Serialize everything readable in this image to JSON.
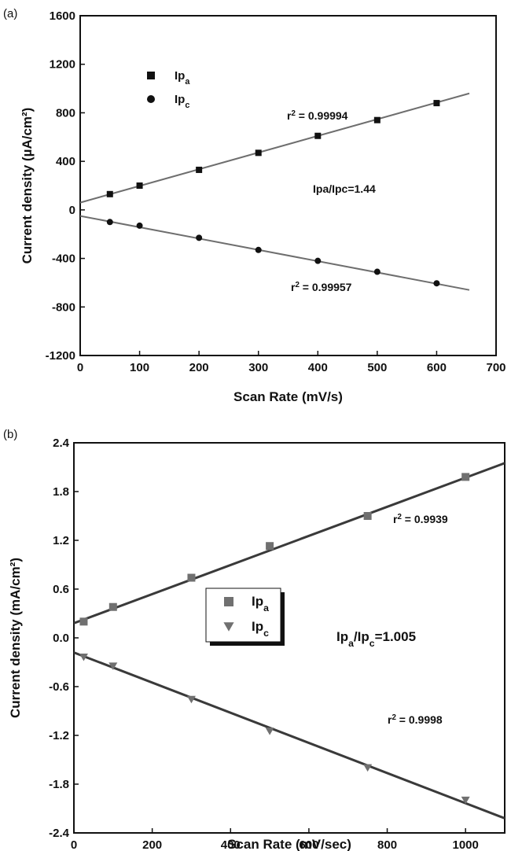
{
  "chart_data": [
    {
      "type": "scatter",
      "panel_label": "(a)",
      "xlabel": "Scan Rate (mV/s)",
      "ylabel": "Current density (µA/cm²)",
      "xlim": [
        0,
        700
      ],
      "ylim": [
        -1200,
        1600
      ],
      "x_ticks": [
        "0",
        "100",
        "200",
        "300",
        "400",
        "500",
        "600",
        "700"
      ],
      "y_ticks": [
        "-1200",
        "-800",
        "-400",
        "0",
        "400",
        "800",
        "1200",
        "1600"
      ],
      "grid": false,
      "legend_placement": "top-left",
      "series": [
        {
          "name": "Ip_a",
          "marker": "square",
          "x": [
            50,
            100,
            200,
            300,
            400,
            500,
            600
          ],
          "y": [
            130,
            200,
            330,
            470,
            610,
            740,
            880
          ],
          "fit_line": {
            "x": [
              0,
              655
            ],
            "y": [
              60,
              960
            ]
          },
          "r2_label": "r² = 0.99994"
        },
        {
          "name": "Ip_c",
          "marker": "circle",
          "x": [
            50,
            100,
            200,
            300,
            400,
            500,
            600
          ],
          "y": [
            -100,
            -130,
            -230,
            -330,
            -420,
            -510,
            -605
          ],
          "fit_line": {
            "x": [
              0,
              655
            ],
            "y": [
              -50,
              -660
            ]
          },
          "r2_label": "r² = 0.99957"
        }
      ],
      "annotations": [
        "Ipa/Ipc=1.44"
      ],
      "colors": {
        "fit_line": "#6e6e6e",
        "markers": "#111111"
      }
    },
    {
      "type": "scatter",
      "panel_label": "(b)",
      "xlabel": "Scan Rate (mV/sec)",
      "ylabel": "Current density (mA/cm²)",
      "xlim": [
        0,
        1100
      ],
      "ylim": [
        -2.4,
        2.4
      ],
      "x_ticks": [
        "0",
        "200",
        "400",
        "600",
        "800",
        "1000"
      ],
      "y_ticks": [
        "-2.4",
        "-1.8",
        "-1.2",
        "-0.6",
        "0.0",
        "0.6",
        "1.2",
        "1.8",
        "2.4"
      ],
      "grid": false,
      "legend_placement": "center-left",
      "series": [
        {
          "name": "Ip_a",
          "marker": "square",
          "x": [
            25,
            100,
            300,
            500,
            750,
            1000
          ],
          "y": [
            0.2,
            0.38,
            0.74,
            1.13,
            1.5,
            1.98
          ],
          "fit_line": {
            "x": [
              0,
              1100
            ],
            "y": [
              0.18,
              2.15
            ]
          },
          "r2_label": "r² = 0.9939"
        },
        {
          "name": "Ip_c",
          "marker": "triangle-down",
          "x": [
            25,
            100,
            300,
            500,
            750,
            1000
          ],
          "y": [
            -0.24,
            -0.35,
            -0.76,
            -1.15,
            -1.6,
            -2.0
          ],
          "fit_line": {
            "x": [
              0,
              1100
            ],
            "y": [
              -0.18,
              -2.22
            ]
          },
          "r2_label": "r² = 0.9998"
        }
      ],
      "annotations": [
        "Ip_a/Ip_c=1.005"
      ],
      "colors": {
        "fit_line": "#3a3a3a",
        "markers": "#707070"
      }
    }
  ]
}
